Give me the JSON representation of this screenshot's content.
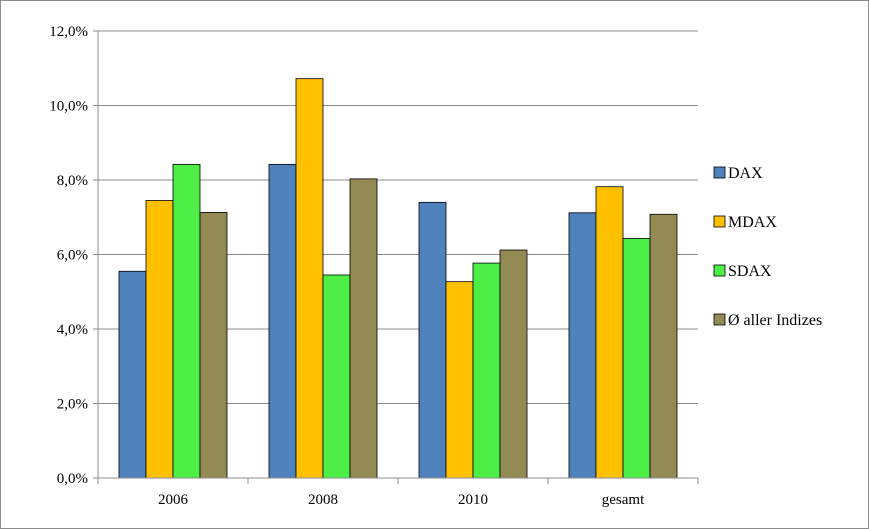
{
  "chart_data": {
    "type": "bar",
    "title": "",
    "xlabel": "",
    "ylabel": "",
    "categories": [
      "2006",
      "2008",
      "2010",
      "gesamt"
    ],
    "ylim": [
      0,
      12
    ],
    "y_ticks": [
      0,
      2,
      4,
      6,
      8,
      10,
      12
    ],
    "y_tick_labels": [
      "0,0%",
      "2,0%",
      "4,0%",
      "6,0%",
      "8,0%",
      "10,0%",
      "12,0%"
    ],
    "grid": true,
    "legend_position": "right",
    "series": [
      {
        "name": "DAX",
        "color": "#4f81bd",
        "values": [
          5.55,
          8.42,
          7.4,
          7.12
        ]
      },
      {
        "name": "MDAX",
        "color": "#ffc000",
        "values": [
          7.45,
          10.72,
          5.27,
          7.82
        ]
      },
      {
        "name": "SDAX",
        "color": "#4dee45",
        "values": [
          8.42,
          5.45,
          5.77,
          6.43
        ]
      },
      {
        "name": "Ø aller Indizes",
        "color": "#948a54",
        "values": [
          7.13,
          8.03,
          6.12,
          7.08
        ]
      }
    ]
  }
}
